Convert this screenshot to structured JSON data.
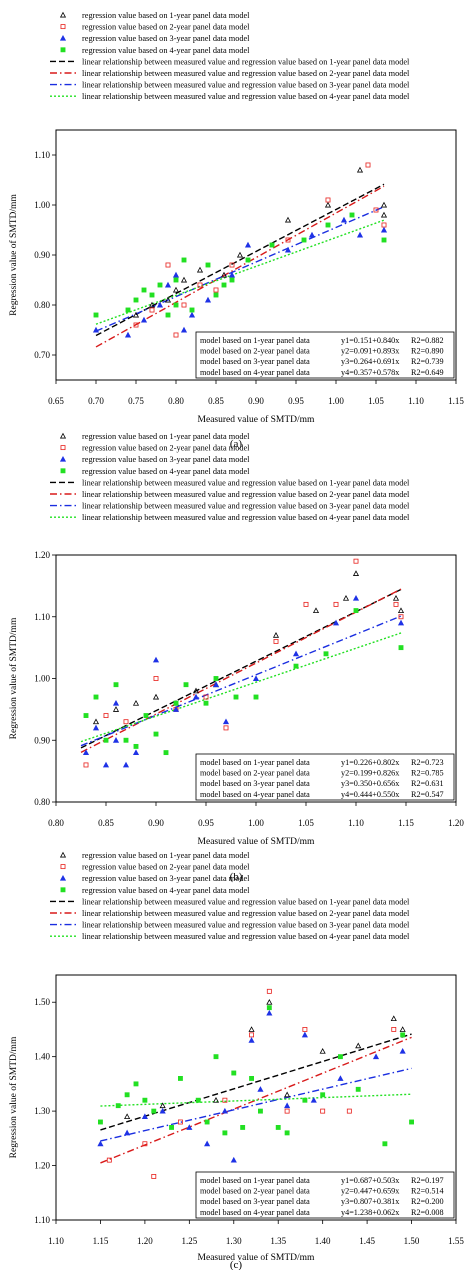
{
  "legend_entries": [
    {
      "label": "regression value based on 1-year panel data model",
      "marker": "triangle-open",
      "color": "#000000"
    },
    {
      "label": "regression value based on 2-year panel data model",
      "marker": "square-open",
      "color": "#e8201c"
    },
    {
      "label": "regression value based on 3-year panel data model",
      "marker": "triangle-filled",
      "color": "#1f32e6"
    },
    {
      "label": "regression value based on 4-year panel data model",
      "marker": "square-filled",
      "color": "#22e022"
    },
    {
      "label": "linear relationship between measured value and regression value based on 1-year panel data model",
      "line": "dash",
      "color": "#000000"
    },
    {
      "label": "linear relationship between measured value and regression value based on 2-year panel data model",
      "line": "dashdot",
      "color": "#d81a1a"
    },
    {
      "label": "linear relationship between measured value and regression value based on 3-year panel data model",
      "line": "dashdot",
      "color": "#1a2ee0"
    },
    {
      "label": "linear relationship between measured value and regression value based on 4-year panel data model",
      "line": "dot",
      "color": "#22e022"
    }
  ],
  "chart_data": [
    {
      "type": "scatter",
      "panel_label": "(a)",
      "xlabel": "Measured value of SMTD/mm",
      "ylabel": "Regression value of SMTD/mm",
      "xlim": [
        0.65,
        1.15
      ],
      "ylim": [
        0.65,
        1.15
      ],
      "xticks": [
        "0.65",
        "0.70",
        "0.75",
        "0.80",
        "0.85",
        "0.90",
        "0.95",
        "1.00",
        "1.05",
        "1.10",
        "1.15"
      ],
      "yticks": [
        "0.70",
        "0.80",
        "0.90",
        "1.00",
        "1.10"
      ],
      "equations": [
        {
          "model": "model based on 1-year panel data",
          "eq": "y1=0.151+0.840x",
          "r2": "R2=0.882",
          "a": 0.151,
          "b": 0.84
        },
        {
          "model": "model based on 2-year panel data",
          "eq": "y2=0.091+0.893x",
          "r2": "R2=0.890",
          "a": 0.091,
          "b": 0.893
        },
        {
          "model": "model based on 3-year panel data",
          "eq": "y3=0.264+0.691x",
          "r2": "R2=0.739",
          "a": 0.264,
          "b": 0.691
        },
        {
          "model": "model based on 4-year panel data",
          "eq": "y4=0.357+0.578x",
          "r2": "R2=0.649",
          "a": 0.357,
          "b": 0.578
        }
      ],
      "line_x": [
        0.7,
        1.06
      ],
      "series": [
        {
          "points": [
            [
              0.75,
              0.78
            ],
            [
              0.77,
              0.8
            ],
            [
              0.79,
              0.81
            ],
            [
              0.8,
              0.83
            ],
            [
              0.81,
              0.85
            ],
            [
              0.83,
              0.87
            ],
            [
              0.86,
              0.86
            ],
            [
              0.88,
              0.9
            ],
            [
              0.94,
              0.97
            ],
            [
              0.99,
              1.0
            ],
            [
              1.03,
              1.07
            ],
            [
              1.06,
              1.0
            ],
            [
              1.06,
              0.98
            ]
          ]
        },
        {
          "points": [
            [
              0.75,
              0.76
            ],
            [
              0.77,
              0.79
            ],
            [
              0.79,
              0.88
            ],
            [
              0.8,
              0.74
            ],
            [
              0.81,
              0.8
            ],
            [
              0.83,
              0.84
            ],
            [
              0.85,
              0.83
            ],
            [
              0.87,
              0.88
            ],
            [
              0.94,
              0.93
            ],
            [
              0.99,
              1.01
            ],
            [
              1.04,
              1.08
            ],
            [
              1.05,
              0.99
            ],
            [
              1.06,
              0.96
            ]
          ]
        },
        {
          "points": [
            [
              0.7,
              0.75
            ],
            [
              0.74,
              0.74
            ],
            [
              0.76,
              0.77
            ],
            [
              0.78,
              0.8
            ],
            [
              0.79,
              0.84
            ],
            [
              0.8,
              0.86
            ],
            [
              0.81,
              0.75
            ],
            [
              0.82,
              0.78
            ],
            [
              0.84,
              0.81
            ],
            [
              0.87,
              0.86
            ],
            [
              0.89,
              0.92
            ],
            [
              0.94,
              0.91
            ],
            [
              0.97,
              0.94
            ],
            [
              1.01,
              0.97
            ],
            [
              1.03,
              0.94
            ],
            [
              1.06,
              0.95
            ]
          ]
        },
        {
          "points": [
            [
              0.7,
              0.78
            ],
            [
              0.74,
              0.79
            ],
            [
              0.75,
              0.81
            ],
            [
              0.76,
              0.83
            ],
            [
              0.77,
              0.82
            ],
            [
              0.78,
              0.84
            ],
            [
              0.79,
              0.78
            ],
            [
              0.8,
              0.85
            ],
            [
              0.8,
              0.8
            ],
            [
              0.81,
              0.89
            ],
            [
              0.82,
              0.79
            ],
            [
              0.84,
              0.88
            ],
            [
              0.85,
              0.82
            ],
            [
              0.86,
              0.84
            ],
            [
              0.87,
              0.85
            ],
            [
              0.89,
              0.89
            ],
            [
              0.92,
              0.92
            ],
            [
              0.96,
              0.93
            ],
            [
              0.99,
              0.96
            ],
            [
              1.02,
              0.98
            ],
            [
              1.06,
              0.93
            ]
          ]
        }
      ]
    },
    {
      "type": "scatter",
      "panel_label": "(b)",
      "xlabel": "Measured value of SMTD/mm",
      "ylabel": "Regression value of SMTD/mm",
      "xlim": [
        0.8,
        1.2
      ],
      "ylim": [
        0.8,
        1.2
      ],
      "xticks": [
        "0.80",
        "0.85",
        "0.90",
        "0.95",
        "1.00",
        "1.05",
        "1.10",
        "1.15",
        "1.20"
      ],
      "yticks": [
        "0.80",
        "0.90",
        "1.00",
        "1.10",
        "1.20"
      ],
      "equations": [
        {
          "model": "model based on 1-year panel data",
          "eq": "y1=0.226+0.802x",
          "r2": "R2=0.723",
          "a": 0.226,
          "b": 0.802
        },
        {
          "model": "model based on 2-year panel data",
          "eq": "y2=0.199+0.826x",
          "r2": "R2=0.785",
          "a": 0.199,
          "b": 0.826
        },
        {
          "model": "model based on 3-year panel data",
          "eq": "y3=0.350+0.656x",
          "r2": "R2=0.631",
          "a": 0.35,
          "b": 0.656
        },
        {
          "model": "model based on 4-year panel data",
          "eq": "y4=0.444+0.550x",
          "r2": "R2=0.547",
          "a": 0.444,
          "b": 0.55
        }
      ],
      "line_x": [
        0.825,
        1.145
      ],
      "series": [
        {
          "points": [
            [
              0.84,
              0.93
            ],
            [
              0.86,
              0.95
            ],
            [
              0.88,
              0.96
            ],
            [
              0.9,
              0.97
            ],
            [
              0.92,
              0.96
            ],
            [
              0.94,
              0.98
            ],
            [
              0.96,
              0.99
            ],
            [
              1.02,
              1.07
            ],
            [
              1.06,
              1.11
            ],
            [
              1.09,
              1.13
            ],
            [
              1.1,
              1.17
            ],
            [
              1.14,
              1.13
            ],
            [
              1.145,
              1.11
            ]
          ]
        },
        {
          "points": [
            [
              0.83,
              0.86
            ],
            [
              0.85,
              0.94
            ],
            [
              0.87,
              0.93
            ],
            [
              0.9,
              1.0
            ],
            [
              0.92,
              0.95
            ],
            [
              0.95,
              0.97
            ],
            [
              0.97,
              0.92
            ],
            [
              1.02,
              1.06
            ],
            [
              1.05,
              1.12
            ],
            [
              1.08,
              1.12
            ],
            [
              1.1,
              1.19
            ],
            [
              1.14,
              1.12
            ],
            [
              1.145,
              1.1
            ]
          ]
        },
        {
          "points": [
            [
              0.83,
              0.88
            ],
            [
              0.84,
              0.92
            ],
            [
              0.85,
              0.86
            ],
            [
              0.86,
              0.9
            ],
            [
              0.86,
              0.96
            ],
            [
              0.87,
              0.86
            ],
            [
              0.88,
              0.88
            ],
            [
              0.9,
              1.03
            ],
            [
              0.92,
              0.95
            ],
            [
              0.94,
              0.97
            ],
            [
              0.96,
              0.99
            ],
            [
              0.97,
              0.93
            ],
            [
              1.0,
              1.0
            ],
            [
              1.04,
              1.04
            ],
            [
              1.08,
              1.09
            ],
            [
              1.1,
              1.13
            ],
            [
              1.145,
              1.09
            ]
          ]
        },
        {
          "points": [
            [
              0.83,
              0.94
            ],
            [
              0.84,
              0.97
            ],
            [
              0.85,
              0.9
            ],
            [
              0.86,
              0.99
            ],
            [
              0.87,
              0.9
            ],
            [
              0.88,
              0.89
            ],
            [
              0.89,
              0.94
            ],
            [
              0.9,
              0.91
            ],
            [
              0.91,
              0.88
            ],
            [
              0.92,
              0.96
            ],
            [
              0.93,
              0.99
            ],
            [
              0.95,
              0.96
            ],
            [
              0.96,
              1.0
            ],
            [
              0.98,
              0.97
            ],
            [
              1.0,
              0.97
            ],
            [
              1.04,
              1.02
            ],
            [
              1.07,
              1.04
            ],
            [
              1.1,
              1.11
            ],
            [
              1.145,
              1.05
            ]
          ]
        }
      ]
    },
    {
      "type": "scatter",
      "panel_label": "(c)",
      "xlabel": "Measured value of SMTD/mm",
      "ylabel": "Regression value of SMTD/mm",
      "xlim": [
        1.1,
        1.55
      ],
      "ylim": [
        1.1,
        1.55
      ],
      "xticks": [
        "1.10",
        "1.15",
        "1.20",
        "1.25",
        "1.30",
        "1.35",
        "1.40",
        "1.45",
        "1.50",
        "1.55"
      ],
      "yticks": [
        "1.10",
        "1.20",
        "1.30",
        "1.40",
        "1.50"
      ],
      "equations": [
        {
          "model": "model based on 1-year panel data",
          "eq": "y1=0.687+0.503x",
          "r2": "R2=0.197",
          "a": 0.687,
          "b": 0.503
        },
        {
          "model": "model based on 2-year panel data",
          "eq": "y2=0.447+0.659x",
          "r2": "R2=0.514",
          "a": 0.447,
          "b": 0.659
        },
        {
          "model": "model based on 3-year panel data",
          "eq": "y3=0.807+0.381x",
          "r2": "R2=0.200",
          "a": 0.807,
          "b": 0.381
        },
        {
          "model": "model based on 4-year panel data",
          "eq": "y4=1.238+0.062x",
          "r2": "R2=0.008",
          "a": 1.238,
          "b": 0.062
        }
      ],
      "line_x": [
        1.15,
        1.5
      ],
      "series": [
        {
          "points": [
            [
              1.18,
              1.29
            ],
            [
              1.22,
              1.31
            ],
            [
              1.28,
              1.32
            ],
            [
              1.32,
              1.45
            ],
            [
              1.34,
              1.5
            ],
            [
              1.36,
              1.33
            ],
            [
              1.4,
              1.41
            ],
            [
              1.44,
              1.42
            ],
            [
              1.48,
              1.47
            ],
            [
              1.49,
              1.45
            ]
          ]
        },
        {
          "points": [
            [
              1.16,
              1.21
            ],
            [
              1.2,
              1.24
            ],
            [
              1.21,
              1.18
            ],
            [
              1.24,
              1.28
            ],
            [
              1.29,
              1.32
            ],
            [
              1.32,
              1.44
            ],
            [
              1.34,
              1.52
            ],
            [
              1.36,
              1.3
            ],
            [
              1.38,
              1.45
            ],
            [
              1.4,
              1.3
            ],
            [
              1.43,
              1.3
            ],
            [
              1.48,
              1.45
            ]
          ]
        },
        {
          "points": [
            [
              1.15,
              1.24
            ],
            [
              1.18,
              1.26
            ],
            [
              1.2,
              1.29
            ],
            [
              1.22,
              1.3
            ],
            [
              1.25,
              1.27
            ],
            [
              1.27,
              1.24
            ],
            [
              1.29,
              1.3
            ],
            [
              1.3,
              1.21
            ],
            [
              1.32,
              1.43
            ],
            [
              1.33,
              1.34
            ],
            [
              1.34,
              1.48
            ],
            [
              1.36,
              1.31
            ],
            [
              1.38,
              1.44
            ],
            [
              1.39,
              1.32
            ],
            [
              1.42,
              1.36
            ],
            [
              1.46,
              1.4
            ],
            [
              1.49,
              1.41
            ]
          ]
        },
        {
          "points": [
            [
              1.15,
              1.28
            ],
            [
              1.17,
              1.31
            ],
            [
              1.18,
              1.33
            ],
            [
              1.19,
              1.35
            ],
            [
              1.2,
              1.32
            ],
            [
              1.21,
              1.3
            ],
            [
              1.23,
              1.27
            ],
            [
              1.24,
              1.36
            ],
            [
              1.26,
              1.32
            ],
            [
              1.27,
              1.28
            ],
            [
              1.28,
              1.4
            ],
            [
              1.29,
              1.26
            ],
            [
              1.3,
              1.37
            ],
            [
              1.31,
              1.27
            ],
            [
              1.32,
              1.36
            ],
            [
              1.33,
              1.3
            ],
            [
              1.34,
              1.49
            ],
            [
              1.35,
              1.27
            ],
            [
              1.36,
              1.26
            ],
            [
              1.38,
              1.32
            ],
            [
              1.4,
              1.33
            ],
            [
              1.42,
              1.4
            ],
            [
              1.44,
              1.34
            ],
            [
              1.47,
              1.24
            ],
            [
              1.49,
              1.44
            ],
            [
              1.5,
              1.28
            ]
          ]
        }
      ]
    }
  ]
}
